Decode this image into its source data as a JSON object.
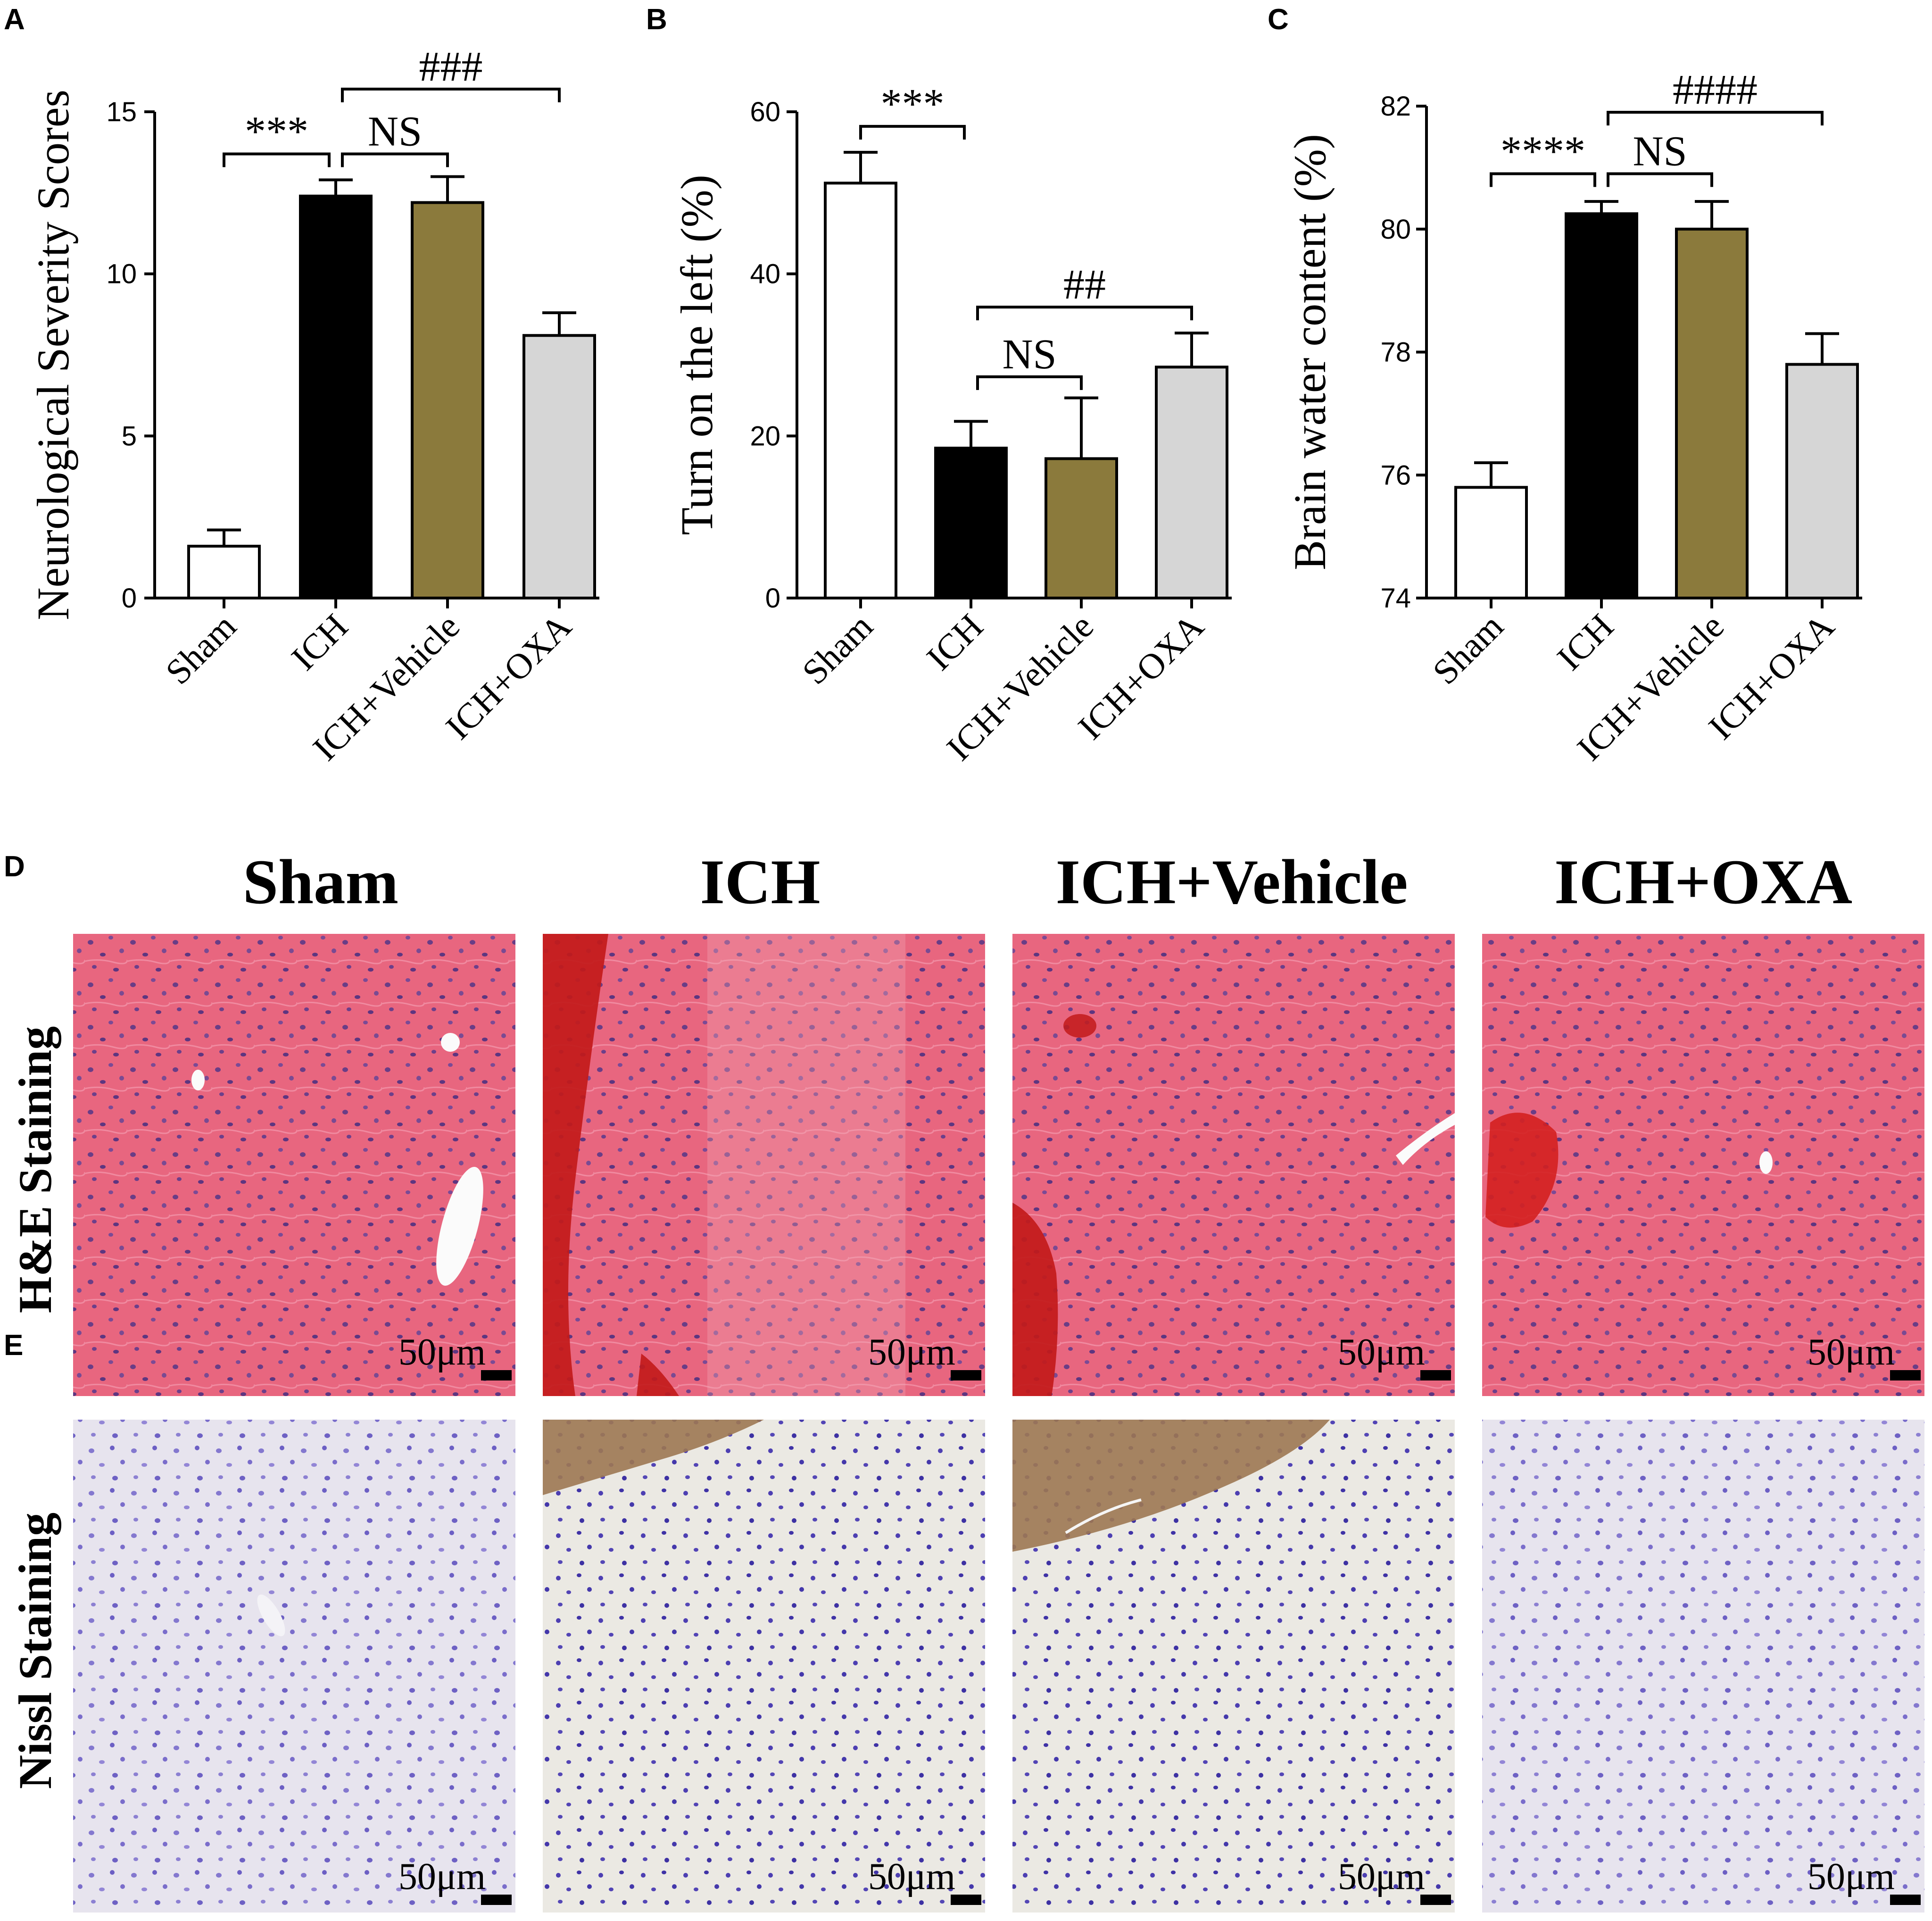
{
  "panels": {
    "a_label": "A",
    "b_label": "B",
    "c_label": "C",
    "d_label": "D",
    "e_label": "E"
  },
  "chart_data": [
    {
      "type": "bar",
      "ylabel": "Neurological Severity Scores",
      "categories": [
        "Sham",
        "ICH",
        "ICH+Vehicle",
        "ICH+OXA"
      ],
      "values": [
        1.6,
        12.4,
        12.2,
        8.1
      ],
      "errors": [
        0.5,
        0.5,
        0.8,
        0.7
      ],
      "ylim": [
        0,
        15
      ],
      "yticks": [
        0,
        5,
        10,
        15
      ],
      "colors": [
        "#ffffff",
        "#000000",
        "#8b7a3c",
        "#d6d6d6"
      ],
      "comparisons": [
        {
          "from": 0,
          "to": 1,
          "label": "***",
          "y": 13.7
        },
        {
          "from": 1,
          "to": 2,
          "label": "NS",
          "y": 13.7
        },
        {
          "from": 1,
          "to": 3,
          "label": "###",
          "y": 15.7
        }
      ]
    },
    {
      "type": "bar",
      "ylabel": "Turn on the left (%)",
      "categories": [
        "Sham",
        "ICH",
        "ICH+Vehicle",
        "ICH+OXA"
      ],
      "values": [
        51.2,
        18.5,
        17.2,
        28.5
      ],
      "errors": [
        3.8,
        3.3,
        7.5,
        4.2
      ],
      "ylim": [
        0,
        60
      ],
      "yticks": [
        0,
        20,
        40,
        60
      ],
      "colors": [
        "#ffffff",
        "#000000",
        "#8b7a3c",
        "#d6d6d6"
      ],
      "comparisons": [
        {
          "from": 0,
          "to": 1,
          "label": "***",
          "y": 58.2
        },
        {
          "from": 1,
          "to": 2,
          "label": "NS",
          "y": 27.3
        },
        {
          "from": 1,
          "to": 3,
          "label": "##",
          "y": 35.9
        }
      ]
    },
    {
      "type": "bar",
      "ylabel": "Brain water content (%)",
      "categories": [
        "Sham",
        "ICH",
        "ICH+Vehicle",
        "ICH+OXA"
      ],
      "values": [
        75.8,
        80.25,
        80.0,
        77.8
      ],
      "errors": [
        0.4,
        0.2,
        0.45,
        0.5
      ],
      "ylim": [
        74,
        82
      ],
      "yticks": [
        74,
        76,
        78,
        80,
        82
      ],
      "colors": [
        "#ffffff",
        "#000000",
        "#8b7a3c",
        "#d6d6d6"
      ],
      "comparisons": [
        {
          "from": 0,
          "to": 1,
          "label": "****",
          "y": 80.9
        },
        {
          "from": 1,
          "to": 2,
          "label": "NS",
          "y": 80.9
        },
        {
          "from": 1,
          "to": 3,
          "label": "####",
          "y": 81.9
        }
      ]
    }
  ],
  "histology": {
    "columns": [
      "Sham",
      "ICH",
      "ICH+Vehicle",
      "ICH+OXA"
    ],
    "rows": [
      "H&E Staining",
      "Nissl Staining"
    ],
    "scale_label": "50μm"
  },
  "colors": {
    "he_base": "#e5637f",
    "nissl_base": "#e5e2ec",
    "hemorrhage": "#c01818",
    "brown_deposit": "#9b7754",
    "nuclei_he": "#4b2e7a",
    "nuclei_nissl": "#5a4fb8"
  }
}
